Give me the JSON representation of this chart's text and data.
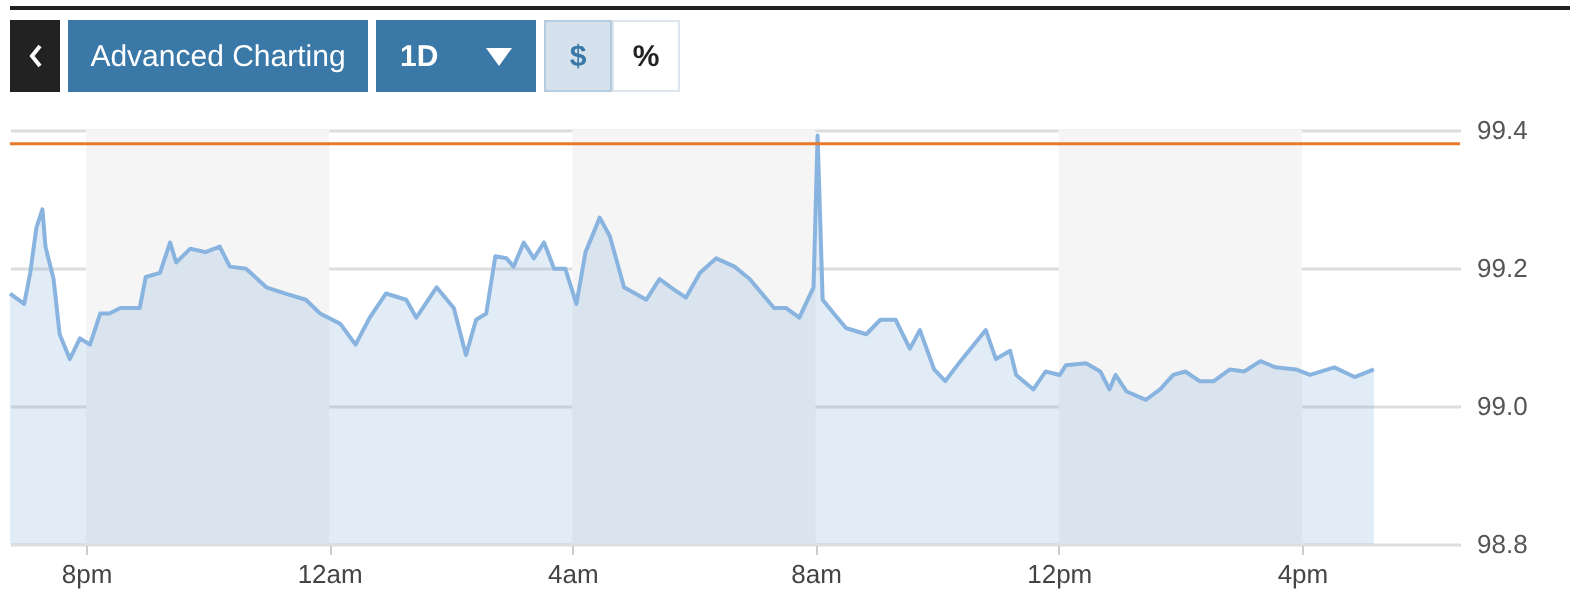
{
  "chart_data": {
    "type": "area",
    "annotations": [
      "Advanced Charting",
      "1D",
      "$",
      "%"
    ],
    "x": [
      "--01-01T18:45",
      "--01-01T18:59",
      "--01-01T19:05",
      "--01-01T19:11",
      "--01-01T19:17",
      "--01-01T19:20",
      "--01-01T19:28",
      "--01-01T19:34",
      "--01-01T19:44",
      "--01-01T19:54",
      "--01-01T20:04",
      "--01-01T20:14",
      "--01-01T20:23",
      "--01-01T20:34",
      "--01-01T20:53",
      "--01-01T20:59",
      "--01-01T21:13",
      "--01-01T21:23",
      "--01-01T21:29",
      "--01-01T21:43",
      "--01-01T21:58",
      "--01-01T22:12",
      "--01-01T22:22",
      "--01-01T22:38",
      "--01-01T22:58",
      "--01-01T23:17",
      "--01-01T23:37",
      "--01-01T23:51",
      "--01-02T00:11",
      "--01-02T00:26",
      "--01-02T00:40",
      "--01-02T00:56",
      "--01-02T01:16",
      "--01-02T01:26",
      "--01-02T01:46",
      "--01-02T02:03",
      "--01-02T02:15",
      "--01-02T02:25",
      "--01-02T02:35",
      "--01-02T02:44",
      "--01-02T02:55",
      "--01-02T03:02",
      "--01-02T03:12",
      "--01-02T03:22",
      "--01-02T03:32",
      "--01-02T03:42",
      "--01-02T03:53",
      "--01-02T04:04",
      "--01-02T04:13",
      "--01-02T04:27",
      "--01-02T04:37",
      "--01-02T04:51",
      "--01-02T05:13",
      "--01-02T05:26",
      "--01-02T05:40",
      "--01-02T05:52",
      "--01-02T06:06",
      "--01-02T06:22",
      "--01-02T06:40",
      "--01-02T06:55",
      "--01-02T07:19",
      "--01-02T07:31",
      "--01-02T07:44",
      "--01-02T07:58",
      "--01-02T08:02",
      "--01-02T08:07",
      "--01-02T08:18",
      "--01-02T08:30",
      "--01-02T08:50",
      "--01-02T09:04",
      "--01-02T09:19",
      "--01-02T09:33",
      "--01-02T09:43",
      "--01-02T09:57",
      "--01-02T10:08",
      "--01-02T10:23",
      "--01-02T10:48",
      "--01-02T10:58",
      "--01-02T11:12",
      "--01-02T11:18",
      "--01-02T11:35",
      "--01-02T11:47",
      "--01-02T12:01",
      "--01-02T12:07",
      "--01-02T12:27",
      "--01-02T12:41",
      "--01-02T12:50",
      "--01-02T12:56",
      "--01-02T13:07",
      "--01-02T13:26",
      "--01-02T13:40",
      "--01-02T13:53",
      "--01-02T14:05",
      "--01-02T14:19",
      "--01-02T14:33",
      "--01-02T14:49",
      "--01-02T15:03",
      "--01-02T15:19",
      "--01-02T15:34",
      "--01-02T15:54",
      "--01-02T16:08",
      "--01-02T16:32",
      "--01-02T16:52",
      "--01-02T17:11"
    ],
    "series": [
      {
        "color": "#8ab4e0",
        "values": [
          99.163,
          99.148,
          99.193,
          99.258,
          99.285,
          99.231,
          99.184,
          99.104,
          99.068,
          99.098,
          99.089,
          99.134,
          99.134,
          99.142,
          99.142,
          99.187,
          99.193,
          99.237,
          99.208,
          99.228,
          99.223,
          99.231,
          99.202,
          99.199,
          99.172,
          99.163,
          99.154,
          99.134,
          99.119,
          99.089,
          99.128,
          99.163,
          99.154,
          99.128,
          99.172,
          99.142,
          99.074,
          99.125,
          99.134,
          99.217,
          99.214,
          99.202,
          99.237,
          99.214,
          99.237,
          99.199,
          99.199,
          99.148,
          99.223,
          99.273,
          99.246,
          99.172,
          99.154,
          99.184,
          99.169,
          99.157,
          99.193,
          99.214,
          99.202,
          99.184,
          99.142,
          99.142,
          99.128,
          99.172,
          99.392,
          99.154,
          99.134,
          99.113,
          99.104,
          99.125,
          99.125,
          99.083,
          99.11,
          99.053,
          99.036,
          99.065,
          99.11,
          99.068,
          99.08,
          99.045,
          99.024,
          99.05,
          99.045,
          99.059,
          99.062,
          99.05,
          99.024,
          99.045,
          99.021,
          99.009,
          99.024,
          99.045,
          99.05,
          99.036,
          99.036,
          99.053,
          99.05,
          99.065,
          99.056,
          99.053,
          99.045,
          99.056,
          99.042,
          99.053
        ]
      }
    ],
    "xlim": [
      "--01-01T18:45",
      "--01-02T18:36"
    ],
    "xticks": [
      {
        "value": "--01-01T20:00",
        "label": "8pm"
      },
      {
        "value": "--01-02T00:00",
        "label": "12am"
      },
      {
        "value": "--01-02T04:00",
        "label": "4am"
      },
      {
        "value": "--01-02T08:00",
        "label": "8am"
      },
      {
        "value": "--01-02T12:00",
        "label": "12pm"
      },
      {
        "value": "--01-02T16:00",
        "label": "4pm"
      }
    ],
    "ylim": [
      98.8,
      99.4
    ],
    "yticks": [
      98.8,
      {
        "value": 99,
        "label": "99.0"
      },
      99.2,
      99.4
    ],
    "grid": "y",
    "ref_lines": [
      {
        "axis": "y",
        "value": 99.38,
        "color": "#e8792b"
      }
    ],
    "bands": [
      {
        "axis": "x",
        "from": "--01-01T20:00",
        "to": "--01-02T00:00",
        "color": "#f5f5f5"
      },
      {
        "axis": "x",
        "from": "--01-02T04:00",
        "to": "--01-02T08:00",
        "color": "#f5f5f5"
      },
      {
        "axis": "x",
        "from": "--01-02T12:00",
        "to": "--01-02T16:00",
        "color": "#f5f5f5"
      }
    ]
  }
}
